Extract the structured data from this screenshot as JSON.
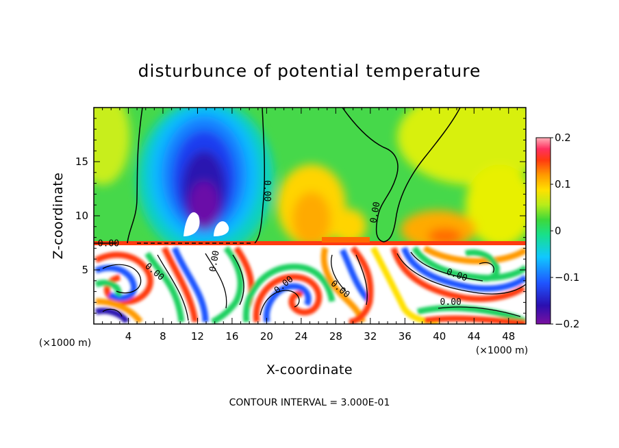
{
  "chart_data": {
    "type": "heatmap",
    "title": "disturbunce of potential temperature",
    "xlabel": "X-coordinate",
    "ylabel": "Z-coordinate",
    "x_unit": "(×1000 m)",
    "y_unit": "(×1000 m)",
    "xlim": [
      0,
      50
    ],
    "ylim": [
      0,
      20
    ],
    "x_ticks": [
      4,
      8,
      12,
      16,
      20,
      24,
      28,
      32,
      36,
      40,
      44,
      48
    ],
    "y_ticks": [
      5,
      10,
      15
    ],
    "colorbar": {
      "range": [
        -0.2,
        0.2
      ],
      "tick_labels": [
        "0.2",
        "0.1",
        "0",
        "−0.1",
        "−0.2"
      ],
      "tick_values": [
        0.2,
        0.1,
        0,
        -0.1,
        -0.2
      ]
    },
    "contour_interval_text": "CONTOUR INTERVAL = 3.000E-01",
    "contour_labels": [
      {
        "text": "0.00",
        "x": 1.7,
        "y": 7.4,
        "rot": 0
      },
      {
        "text": "0.00",
        "x": 20.0,
        "y": 12.3,
        "rot": 90
      },
      {
        "text": "0.00",
        "x": 32.6,
        "y": 10.3,
        "rot": -80
      },
      {
        "text": "0.00",
        "x": 7.0,
        "y": 4.8,
        "rot": 40
      },
      {
        "text": "0.00",
        "x": 14.0,
        "y": 5.8,
        "rot": -80
      },
      {
        "text": "0.00",
        "x": 22.0,
        "y": 3.6,
        "rot": -40
      },
      {
        "text": "0.00",
        "x": 28.5,
        "y": 3.2,
        "rot": 40
      },
      {
        "text": "0.00",
        "x": 42.0,
        "y": 4.5,
        "rot": 20
      },
      {
        "text": "0.00",
        "x": 41.3,
        "y": 2.0,
        "rot": 0
      }
    ]
  }
}
